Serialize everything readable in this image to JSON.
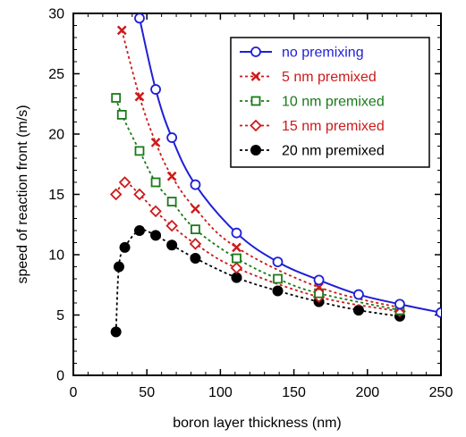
{
  "chart_data": {
    "type": "line",
    "title": "",
    "xlabel": "boron layer thickness (nm)",
    "ylabel": "speed of reaction front (m/s)",
    "xlim": [
      0,
      250
    ],
    "ylim": [
      0,
      30
    ],
    "xticks": [
      0,
      50,
      100,
      150,
      200,
      250
    ],
    "yticks": [
      0,
      5,
      10,
      15,
      20,
      25,
      30
    ],
    "grid": false,
    "legend_position": "top-right",
    "series": [
      {
        "name": "no premixing",
        "color": "#1f1fd6",
        "marker": "open-circle",
        "line": "solid",
        "x": [
          45,
          56,
          67,
          83,
          111,
          139,
          167,
          194,
          222,
          250
        ],
        "y": [
          29.6,
          23.7,
          19.7,
          15.8,
          11.8,
          9.4,
          7.9,
          6.7,
          5.9,
          5.2
        ]
      },
      {
        "name": "5 nm premixed",
        "color": "#cc1a1a",
        "marker": "x",
        "line": "dotted",
        "x": [
          33,
          45,
          56,
          67,
          83,
          111,
          167,
          222
        ],
        "y": [
          28.6,
          23.1,
          19.3,
          16.5,
          13.8,
          10.6,
          7.3,
          5.6
        ]
      },
      {
        "name": "10 nm premixed",
        "color": "#1a7a1a",
        "marker": "open-square",
        "line": "dotted",
        "x": [
          29,
          33,
          45,
          56,
          67,
          83,
          111,
          139,
          167,
          222
        ],
        "y": [
          23.0,
          21.6,
          18.6,
          16.0,
          14.4,
          12.1,
          9.7,
          8.0,
          6.8,
          5.4
        ]
      },
      {
        "name": "15 nm premixed",
        "color": "#cc1a1a",
        "marker": "open-diamond",
        "line": "dotted",
        "x": [
          29,
          35,
          45,
          56,
          67,
          83,
          111,
          167,
          222
        ],
        "y": [
          15.0,
          16.0,
          15.0,
          13.6,
          12.4,
          10.9,
          8.9,
          6.5,
          5.3
        ]
      },
      {
        "name": "20 nm premixed",
        "color": "#000000",
        "marker": "filled-circle",
        "line": "dotted",
        "x": [
          29,
          31,
          35,
          45,
          56,
          67,
          83,
          111,
          139,
          167,
          194,
          222
        ],
        "y": [
          3.6,
          9.0,
          10.6,
          12.0,
          11.6,
          10.8,
          9.7,
          8.1,
          7.0,
          6.1,
          5.4,
          4.9
        ]
      }
    ]
  }
}
